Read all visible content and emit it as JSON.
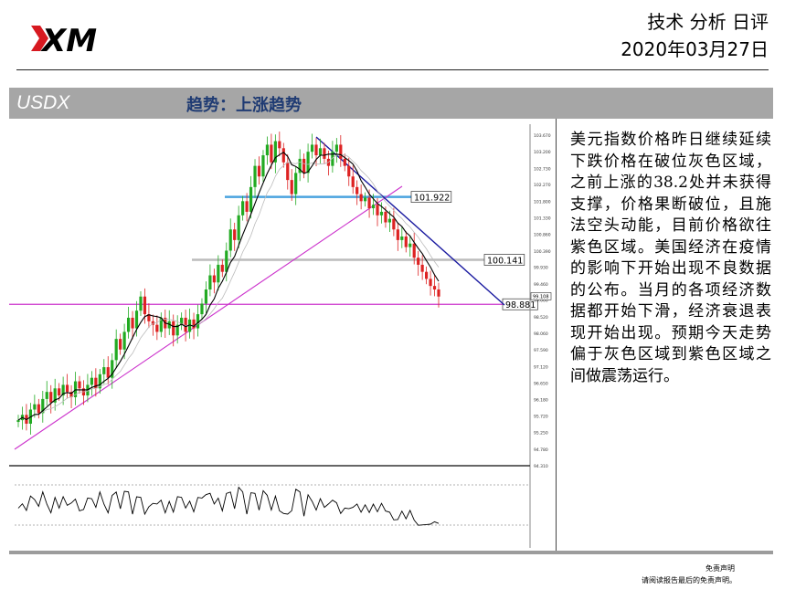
{
  "header": {
    "logo_text": "XM",
    "title": "技术 分析 日评",
    "date": "2020年03月27日"
  },
  "bar": {
    "symbol": "USDX",
    "trend": "趋势：上涨趋势"
  },
  "commentary": "美元指数价格昨日继续延续下跌价格在破位灰色区域，之前上涨的38.2处并未获得支撑，价格果断破位，且施法空头动能，目前价格欲往紫色区域。美国经济在疫情的影响下开始出现不良数据的公布。当月的各项经济数据都开始下滑，经济衰退表现开始出现。预期今天走势偏于灰色区域到紫色区域之间做震荡运行。",
  "footer": {
    "disclaimer_title": "免责声明",
    "disclaimer_text": "请阅读报告最后的免责声明。"
  },
  "chart_data": {
    "type": "candlestick",
    "y_ticks": [
      "103.670",
      "103.200",
      "102.730",
      "102.270",
      "101.800",
      "101.330",
      "100.860",
      "100.390",
      "99.930",
      "99.460",
      "99.000",
      "98.520",
      "98.060",
      "97.590",
      "97.120",
      "96.650",
      "96.180",
      "95.720",
      "95.250",
      "94.780",
      "94.310"
    ],
    "ylim": [
      94.31,
      103.67
    ],
    "levels": [
      {
        "name": "blue",
        "value": 101.922,
        "label": "101.922",
        "color": "#4aa3df"
      },
      {
        "name": "gray",
        "value": 100.141,
        "label": "100.141",
        "color": "#bcbcbc"
      },
      {
        "name": "magenta",
        "value": 98.881,
        "label": "98.881",
        "color": "#cc33cc"
      }
    ],
    "last_price": "99.108",
    "close_path": [
      95.6,
      95.75,
      95.5,
      95.9,
      96.05,
      95.8,
      96.2,
      96.4,
      96.1,
      96.5,
      96.3,
      96.6,
      96.4,
      96.25,
      96.7,
      96.5,
      96.3,
      96.6,
      96.8,
      96.5,
      96.9,
      97.1,
      96.8,
      97.3,
      97.9,
      97.6,
      98.1,
      98.5,
      98.2,
      98.7,
      99.1,
      98.6,
      98.4,
      98.3,
      98.1,
      98.5,
      98.2,
      98.4,
      98.0,
      98.3,
      98.5,
      98.1,
      98.45,
      98.2,
      98.6,
      98.9,
      99.3,
      99.7,
      99.5,
      100.0,
      99.8,
      100.4,
      101.0,
      100.7,
      101.4,
      101.8,
      101.5,
      102.2,
      102.8,
      102.5,
      103.1,
      103.4,
      102.9,
      103.5,
      103.3,
      102.9,
      102.4,
      102.0,
      102.6,
      103.0,
      102.6,
      103.2,
      103.4,
      103.1,
      103.3,
      103.0,
      102.8,
      103.2,
      103.4,
      103.0,
      102.8,
      102.5,
      102.2,
      102.0,
      101.8,
      101.9,
      101.6,
      101.7,
      101.4,
      101.5,
      101.2,
      101.3,
      101.0,
      100.7,
      100.8,
      100.5,
      100.6,
      100.2,
      100.0,
      99.8,
      99.6,
      99.4,
      99.3,
      99.1
    ]
  }
}
